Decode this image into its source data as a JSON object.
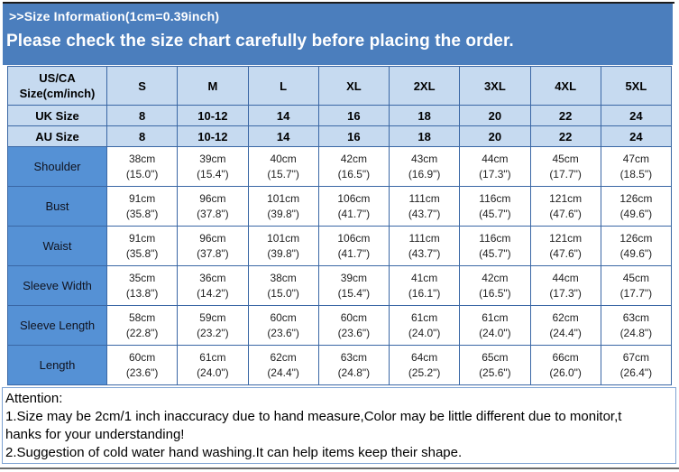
{
  "banner": {
    "info_line": ">>Size Information(1cm=0.39inch)",
    "headline": "Please check the size chart carefully before placing the order."
  },
  "colors": {
    "banner_bg": "#4b7ebd",
    "header_cell_bg": "#c6daf0",
    "row_label_bg": "#5591d5",
    "table_border": "#3a67a5",
    "attention_border": "#7da2d2"
  },
  "table": {
    "corner_header_line1": "US/CA",
    "corner_header_line2": "Size(cm/inch)",
    "size_columns": [
      "S",
      "M",
      "L",
      "XL",
      "2XL",
      "3XL",
      "4XL",
      "5XL"
    ],
    "size_rows": [
      {
        "label": "UK Size",
        "values": [
          "8",
          "10-12",
          "14",
          "16",
          "18",
          "20",
          "22",
          "24"
        ]
      },
      {
        "label": "AU Size",
        "values": [
          "8",
          "10-12",
          "14",
          "16",
          "18",
          "20",
          "22",
          "24"
        ]
      }
    ],
    "measurement_rows": [
      {
        "label": "Shoulder",
        "cm": [
          "38cm",
          "39cm",
          "40cm",
          "42cm",
          "43cm",
          "44cm",
          "45cm",
          "47cm"
        ],
        "inch": [
          "(15.0\")",
          "(15.4\")",
          "(15.7\")",
          "(16.5\")",
          "(16.9\")",
          "(17.3\")",
          "(17.7\")",
          "(18.5\")"
        ]
      },
      {
        "label": "Bust",
        "cm": [
          "91cm",
          "96cm",
          "101cm",
          "106cm",
          "111cm",
          "116cm",
          "121cm",
          "126cm"
        ],
        "inch": [
          "(35.8\")",
          "(37.8\")",
          "(39.8\")",
          "(41.7\")",
          "(43.7\")",
          "(45.7\")",
          "(47.6\")",
          "(49.6\")"
        ]
      },
      {
        "label": "Waist",
        "cm": [
          "91cm",
          "96cm",
          "101cm",
          "106cm",
          "111cm",
          "116cm",
          "121cm",
          "126cm"
        ],
        "inch": [
          "(35.8\")",
          "(37.8\")",
          "(39.8\")",
          "(41.7\")",
          "(43.7\")",
          "(45.7\")",
          "(47.6\")",
          "(49.6\")"
        ]
      },
      {
        "label": "Sleeve Width",
        "cm": [
          "35cm",
          "36cm",
          "38cm",
          "39cm",
          "41cm",
          "42cm",
          "44cm",
          "45cm"
        ],
        "inch": [
          "(13.8\")",
          "(14.2\")",
          "(15.0\")",
          "(15.4\")",
          "(16.1\")",
          "(16.5\")",
          "(17.3\")",
          "(17.7\")"
        ]
      },
      {
        "label": "Sleeve Length",
        "cm": [
          "58cm",
          "59cm",
          "60cm",
          "60cm",
          "61cm",
          "61cm",
          "62cm",
          "63cm"
        ],
        "inch": [
          "(22.8\")",
          "(23.2\")",
          "(23.6\")",
          "(23.6\")",
          "(24.0\")",
          "(24.0\")",
          "(24.4\")",
          "(24.8\")"
        ]
      },
      {
        "label": "Length",
        "cm": [
          "60cm",
          "61cm",
          "62cm",
          "63cm",
          "64cm",
          "65cm",
          "66cm",
          "67cm"
        ],
        "inch": [
          "(23.6\")",
          "(24.0\")",
          "(24.4\")",
          "(24.8\")",
          "(25.2\")",
          "(25.6\")",
          "(26.0\")",
          "(26.4\")"
        ]
      }
    ]
  },
  "attention": {
    "lines": [
      "Attention:",
      "1.Size may be 2cm/1 inch inaccuracy due to hand measure,Color may be little different due to monitor,t",
      "hanks for your understanding!",
      "2.Suggestion of cold water hand washing.It can help items keep their shape."
    ]
  }
}
